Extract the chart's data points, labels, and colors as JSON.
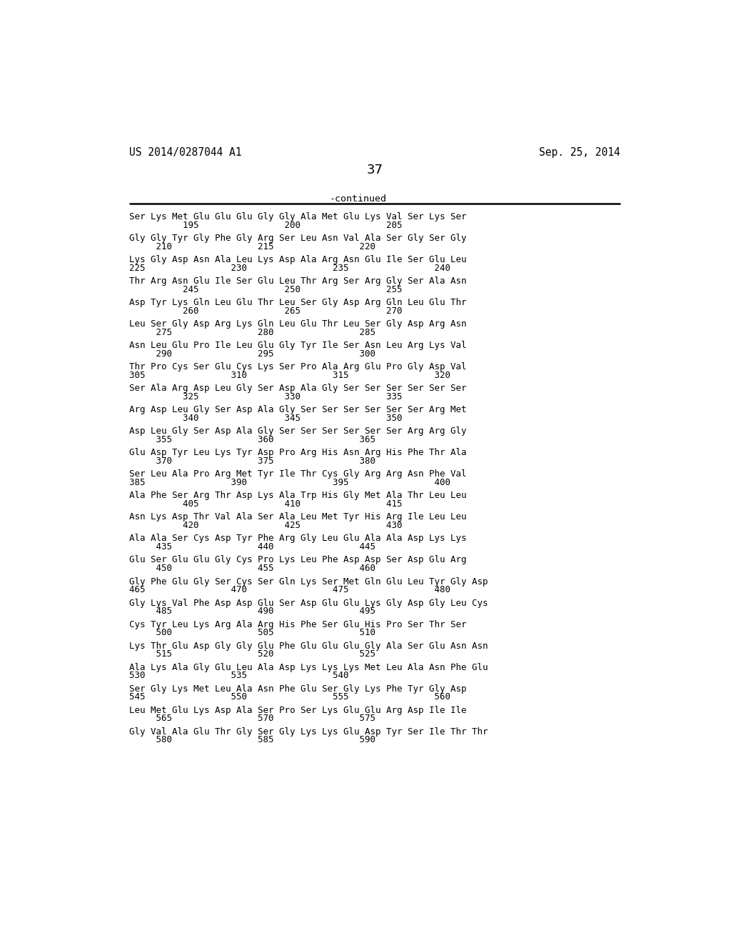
{
  "header_left": "US 2014/0287044 A1",
  "header_right": "Sep. 25, 2014",
  "page_number": "37",
  "continued_label": "-continued",
  "sequence_blocks": [
    {
      "seq": "Ser Lys Met Glu Glu Glu Gly Gly Ala Met Glu Lys Val Ser Lys Ser",
      "nums": "          195                200                205"
    },
    {
      "seq": "Gly Gly Tyr Gly Phe Gly Arg Ser Leu Asn Val Ala Ser Gly Ser Gly",
      "nums": "     210                215                220"
    },
    {
      "seq": "Lys Gly Asp Asn Ala Leu Lys Asp Ala Arg Asn Glu Ile Ser Glu Leu",
      "nums": "225                230                235                240"
    },
    {
      "seq": "Thr Arg Asn Glu Ile Ser Glu Leu Thr Arg Ser Arg Gly Ser Ala Asn",
      "nums": "          245                250                255"
    },
    {
      "seq": "Asp Tyr Lys Gln Leu Glu Thr Leu Ser Gly Asp Arg Gln Leu Glu Thr",
      "nums": "          260                265                270"
    },
    {
      "seq": "Leu Ser Gly Asp Arg Lys Gln Leu Glu Thr Leu Ser Gly Asp Arg Asn",
      "nums": "     275                280                285"
    },
    {
      "seq": "Asn Leu Glu Pro Ile Leu Glu Gly Tyr Ile Ser Asn Leu Arg Lys Val",
      "nums": "     290                295                300"
    },
    {
      "seq": "Thr Pro Cys Ser Glu Cys Lys Ser Pro Ala Arg Glu Pro Gly Asp Val",
      "nums": "305                310                315                320"
    },
    {
      "seq": "Ser Ala Arg Asp Leu Gly Ser Asp Ala Gly Ser Ser Ser Ser Ser Ser",
      "nums": "          325                330                335"
    },
    {
      "seq": "Arg Asp Leu Gly Ser Asp Ala Gly Ser Ser Ser Ser Ser Ser Arg Met",
      "nums": "          340                345                350"
    },
    {
      "seq": "Asp Leu Gly Ser Asp Ala Gly Ser Ser Ser Ser Ser Ser Arg Arg Gly",
      "nums": "     355                360                365"
    },
    {
      "seq": "Glu Asp Tyr Leu Lys Tyr Asp Pro Arg His Asn Arg His Phe Thr Ala",
      "nums": "     370                375                380"
    },
    {
      "seq": "Ser Leu Ala Pro Arg Met Tyr Ile Thr Cys Gly Arg Arg Asn Phe Val",
      "nums": "385                390                395                400"
    },
    {
      "seq": "Ala Phe Ser Arg Thr Asp Lys Ala Trp His Gly Met Ala Thr Leu Leu",
      "nums": "          405                410                415"
    },
    {
      "seq": "Asn Lys Asp Thr Val Ala Ser Ala Leu Met Tyr His Arg Ile Leu Leu",
      "nums": "          420                425                430"
    },
    {
      "seq": "Ala Ala Ser Cys Asp Tyr Phe Arg Gly Leu Glu Ala Ala Asp Lys Lys",
      "nums": "     435                440                445"
    },
    {
      "seq": "Glu Ser Glu Glu Gly Cys Pro Lys Leu Phe Asp Asp Ser Asp Glu Arg",
      "nums": "     450                455                460"
    },
    {
      "seq": "Gly Phe Glu Gly Ser Cys Ser Gln Lys Ser Met Gln Glu Leu Tyr Gly Asp",
      "nums": "465                470                475                480"
    },
    {
      "seq": "Gly Lys Val Phe Asp Asp Glu Ser Asp Glu Glu Lys Gly Asp Gly Leu Cys",
      "nums": "     485                490                495"
    },
    {
      "seq": "Cys Tyr Leu Lys Arg Ala Arg His Phe Ser Glu His Pro Ser Thr Ser",
      "nums": "     500                505                510"
    },
    {
      "seq": "Lys Thr Glu Asp Gly Gly Glu Phe Glu Glu Glu Gly Ala Ser Glu Asn Asn",
      "nums": "     515                520                525"
    },
    {
      "seq": "Ala Lys Ala Gly Glu Leu Ala Asp Lys Lys Lys Met Leu Ala Asn Phe Glu",
      "nums": "530                535                540"
    },
    {
      "seq": "Ser Gly Lys Met Leu Ala Asn Phe Glu Ser Gly Lys Phe Tyr Gly Asp",
      "nums": "545                550                555                560"
    },
    {
      "seq": "Leu Met Glu Lys Asp Ala Ser Pro Ser Lys Glu Glu Arg Asp Ile Ile",
      "nums": "     565                570                575"
    },
    {
      "seq": "Gly Val Ala Glu Thr Gly Ser Gly Lys Lys Glu Asp Tyr Ser Ile Thr Thr",
      "nums": "     580                585                590"
    }
  ]
}
